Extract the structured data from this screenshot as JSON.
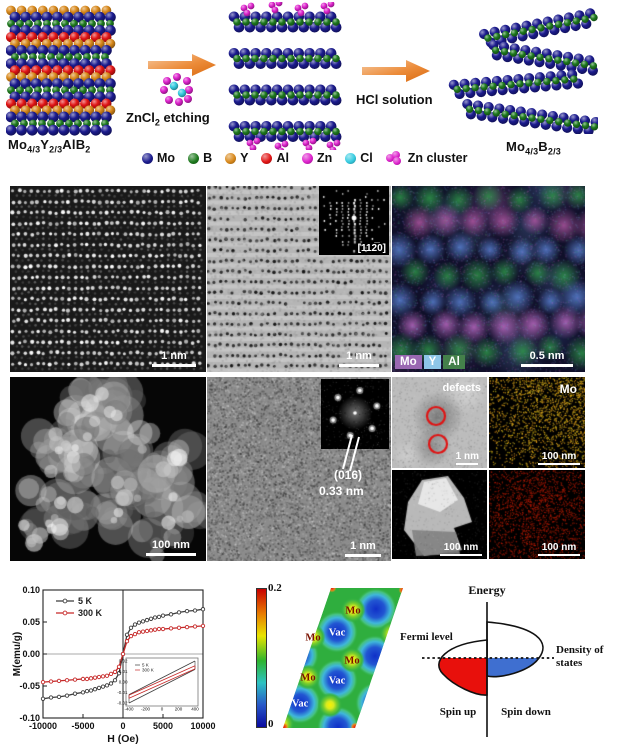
{
  "schematic": {
    "formula_left": {
      "b1": "Mo",
      "s1": "4/3",
      "b2": "Y",
      "s2": "2/3",
      "b3": "AlB",
      "s3": "2"
    },
    "formula_right": {
      "b1": "Mo",
      "s1": "4/3",
      "b2": "B",
      "s2": "2/3"
    },
    "step1_label_base": "ZnCl",
    "step1_label_sub": "2",
    "step1_label_rest": " etching",
    "step2_label": "HCl solution",
    "legend": [
      {
        "name": "Mo",
        "color": "#1b1b8e"
      },
      {
        "name": "B",
        "color": "#1e7a1e"
      },
      {
        "name": "Y",
        "color": "#d8881a"
      },
      {
        "name": "Al",
        "color": "#e01414"
      },
      {
        "name": "Zn",
        "color": "#dd22cc"
      },
      {
        "name": "Cl",
        "color": "#35cbe0"
      },
      {
        "name": "Zn cluster",
        "color": "#dd22cc"
      }
    ]
  },
  "panels": {
    "p1": {
      "scale": "1 nm"
    },
    "p2": {
      "scale": "1 nm",
      "fft_label": "[112̅0]"
    },
    "p3": {
      "scale": "0.5 nm",
      "elements": [
        {
          "name": "Mo",
          "color": "#9a68b2"
        },
        {
          "name": "Y",
          "color": "#8ec6e8"
        },
        {
          "name": "Al",
          "color": "#44804a"
        }
      ]
    },
    "p4": {
      "scale": "100 nm"
    },
    "p5": {
      "scale": "1 nm",
      "plane": "(016)",
      "spacing": "0.33 nm"
    },
    "p6a": {
      "label": "defects",
      "scale": "1 nm"
    },
    "p6b": {
      "label": "Mo",
      "scale": "100 nm"
    },
    "p6c": {
      "scale": "100 nm"
    },
    "p6d": {
      "scale": "100 nm"
    }
  },
  "chart_data": [
    {
      "type": "line",
      "xlabel": "H (Oe)",
      "ylabel": "M(emu/g)",
      "xlim": [
        -10000,
        10000
      ],
      "ylim": [
        -0.1,
        0.1
      ],
      "xticks": [
        -10000,
        -5000,
        0,
        5000,
        10000
      ],
      "xtick_labels": [
        "-10000",
        "-5000",
        "0",
        "5000",
        "10000"
      ],
      "yticks": [
        0.1,
        0.05,
        0.0,
        -0.05,
        -0.1
      ],
      "ytick_labels": [
        "0.10",
        "0.05",
        "0.00",
        "-0.05",
        "-0.10"
      ],
      "x": [
        -10000,
        -9000,
        -8000,
        -7000,
        -6000,
        -5000,
        -4500,
        -4000,
        -3500,
        -3000,
        -2500,
        -2000,
        -1500,
        -1000,
        -500,
        0,
        500,
        1000,
        1500,
        2000,
        2500,
        3000,
        3500,
        4000,
        4500,
        5000,
        6000,
        7000,
        8000,
        9000,
        10000
      ],
      "series": [
        {
          "name": "5 K",
          "color": "#3c3c3c",
          "y": [
            -0.07,
            -0.068,
            -0.067,
            -0.065,
            -0.062,
            -0.06,
            -0.058,
            -0.057,
            -0.055,
            -0.053,
            -0.051,
            -0.049,
            -0.046,
            -0.041,
            -0.03,
            0.0,
            0.03,
            0.041,
            0.046,
            0.049,
            0.051,
            0.053,
            0.055,
            0.057,
            0.058,
            0.06,
            0.062,
            0.065,
            0.067,
            0.068,
            0.07
          ]
        },
        {
          "name": "300 K",
          "color": "#c62828",
          "y": [
            -0.044,
            -0.043,
            -0.042,
            -0.041,
            -0.04,
            -0.039,
            -0.039,
            -0.038,
            -0.037,
            -0.036,
            -0.035,
            -0.034,
            -0.031,
            -0.028,
            -0.02,
            0.0,
            0.02,
            0.028,
            0.031,
            0.034,
            0.035,
            0.036,
            0.037,
            0.038,
            0.039,
            0.039,
            0.04,
            0.041,
            0.042,
            0.043,
            0.044
          ]
        }
      ],
      "inset": {
        "xlim": [
          -400,
          400
        ],
        "ylim": [
          -0.02,
          0.02
        ],
        "xtick_labels": [
          "-400",
          "-200",
          "0",
          "200",
          "400"
        ],
        "ytick_labels": [
          "0.02",
          "0.01",
          "0.00",
          "-0.01",
          "-0.02"
        ],
        "legend": [
          "5 K",
          "300 K"
        ],
        "loops": [
          {
            "name": "5 K",
            "color": "#3c3c3c",
            "slope": 4e-05,
            "offset": 0.004
          },
          {
            "name": "300 K",
            "color": "#c62828",
            "slope": 3.5e-05,
            "offset": 0.0015
          }
        ]
      }
    },
    {
      "type": "heatmap",
      "colorbar": {
        "max_label": "0.2",
        "min_label": "0"
      },
      "mo_label": "Mo",
      "vac_label": "Vac",
      "mo_sites": [
        [
          41,
          53
        ],
        [
          81,
          26
        ],
        [
          80,
          76
        ],
        [
          36,
          93
        ]
      ],
      "mo_extra": [
        [
          120,
          50
        ],
        [
          44,
          6
        ],
        [
          118,
          100
        ],
        [
          58,
          121
        ],
        [
          10,
          140
        ],
        [
          96,
          143
        ]
      ],
      "vac_sites": [
        [
          65,
          48
        ],
        [
          26,
          71
        ],
        [
          65,
          96
        ],
        [
          28,
          119
        ]
      ],
      "vac_extra": [
        [
          104,
          25
        ],
        [
          103,
          72
        ],
        [
          104,
          119
        ],
        [
          66,
          143
        ]
      ],
      "hot_spots": [
        [
          130,
          44
        ],
        [
          60,
          4
        ],
        [
          131,
          6
        ],
        [
          83,
          143
        ],
        [
          12,
          143
        ]
      ]
    },
    {
      "type": "diagram",
      "energy_label": "Energy",
      "fermi_label": "Fermi level",
      "dos_label_1": "Density of",
      "dos_label_2": "states",
      "spin_up_label": "Spin up",
      "spin_down_label": "Spin down",
      "spin_up_color": "#e8100c",
      "spin_down_color": "#3f6fd0"
    }
  ]
}
